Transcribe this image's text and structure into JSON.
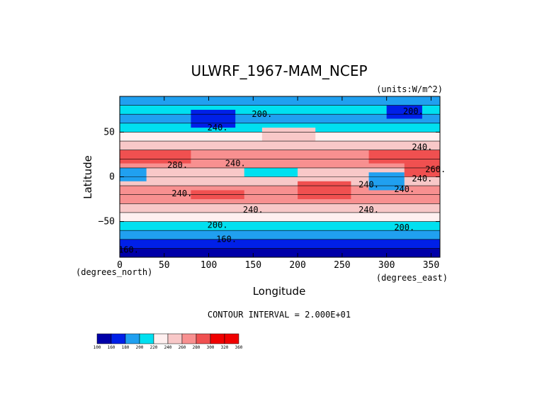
{
  "chart_data": {
    "type": "heatmap",
    "title": "ULWRF_1967-MAM_NCEP",
    "units": "(units:W/m^2)",
    "xlabel": "Longitude",
    "ylabel": "Latitude",
    "x_unit_label": "(degrees_east)",
    "y_unit_label": "(degrees_north)",
    "contour_interval_text": "CONTOUR INTERVAL = 2.000E+01",
    "xlim": [
      0,
      360
    ],
    "ylim": [
      -90,
      90
    ],
    "x_ticks": [
      0,
      50,
      100,
      150,
      200,
      250,
      300,
      350
    ],
    "y_ticks": [
      -50,
      0,
      50
    ],
    "contour_labels": [
      "200.",
      "240.",
      "240.",
      "280.",
      "240.",
      "240.",
      "240.",
      "240.",
      "240.",
      "200.",
      "160.",
      "200.",
      "160.",
      "200.",
      "240.",
      "240.",
      "260."
    ],
    "colorbar": {
      "levels": [
        100,
        160,
        180,
        200,
        220,
        240,
        260,
        280,
        300,
        320,
        360
      ],
      "tick_labels": [
        "100",
        "160",
        "180",
        "200",
        "220",
        "240",
        "260",
        "280",
        "300",
        "320",
        "360"
      ],
      "colors": [
        "#0000a8",
        "#0020e8",
        "#20a0f0",
        "#00e0f0",
        "#fff0f0",
        "#f8c8c8",
        "#f89090",
        "#f05050",
        "#f00000",
        "#f00000"
      ]
    },
    "bands": [
      {
        "lat_min": -90,
        "lat_max": -80,
        "value": 150
      },
      {
        "lat_min": -80,
        "lat_max": -70,
        "value": 170
      },
      {
        "lat_min": -70,
        "lat_max": -60,
        "value": 190
      },
      {
        "lat_min": -60,
        "lat_max": -50,
        "value": 210
      },
      {
        "lat_min": -50,
        "lat_max": -40,
        "value": 230
      },
      {
        "lat_min": -40,
        "lat_max": -30,
        "value": 250
      },
      {
        "lat_min": -30,
        "lat_max": -20,
        "value": 270
      },
      {
        "lat_min": -20,
        "lat_max": -10,
        "value": 270
      },
      {
        "lat_min": -10,
        "lat_max": 0,
        "value": 250
      },
      {
        "lat_min": 0,
        "lat_max": 10,
        "value": 250
      },
      {
        "lat_min": 10,
        "lat_max": 20,
        "value": 270
      },
      {
        "lat_min": 20,
        "lat_max": 30,
        "value": 270
      },
      {
        "lat_min": 30,
        "lat_max": 40,
        "value": 250
      },
      {
        "lat_min": 40,
        "lat_max": 50,
        "value": 230
      },
      {
        "lat_min": 50,
        "lat_max": 60,
        "value": 210
      },
      {
        "lat_min": 60,
        "lat_max": 70,
        "value": 190
      },
      {
        "lat_min": 70,
        "lat_max": 80,
        "value": 210
      },
      {
        "lat_min": 80,
        "lat_max": 90,
        "value": 190
      }
    ],
    "features": [
      {
        "lon_min": 0,
        "lon_max": 30,
        "lat_min": -5,
        "lat_max": 10,
        "value": 190
      },
      {
        "lon_min": 140,
        "lon_max": 200,
        "lat_min": 0,
        "lat_max": 10,
        "value": 210
      },
      {
        "lon_min": 280,
        "lon_max": 320,
        "lat_min": -15,
        "lat_max": 5,
        "value": 190
      },
      {
        "lon_min": 0,
        "lon_max": 80,
        "lat_min": 15,
        "lat_max": 30,
        "value": 290
      },
      {
        "lon_min": 280,
        "lon_max": 360,
        "lat_min": 15,
        "lat_max": 30,
        "value": 290
      },
      {
        "lon_min": 80,
        "lon_max": 140,
        "lat_min": -25,
        "lat_max": -15,
        "value": 290
      },
      {
        "lon_min": 200,
        "lon_max": 260,
        "lat_min": -25,
        "lat_max": -5,
        "value": 290
      },
      {
        "lon_min": 320,
        "lon_max": 360,
        "lat_min": 0,
        "lat_max": 20,
        "value": 290
      },
      {
        "lon_min": 80,
        "lon_max": 130,
        "lat_min": 55,
        "lat_max": 75,
        "value": 170
      },
      {
        "lon_min": 300,
        "lon_max": 340,
        "lat_min": 65,
        "lat_max": 80,
        "value": 170
      },
      {
        "lon_min": 160,
        "lon_max": 220,
        "lat_min": 40,
        "lat_max": 55,
        "value": 250
      }
    ]
  }
}
